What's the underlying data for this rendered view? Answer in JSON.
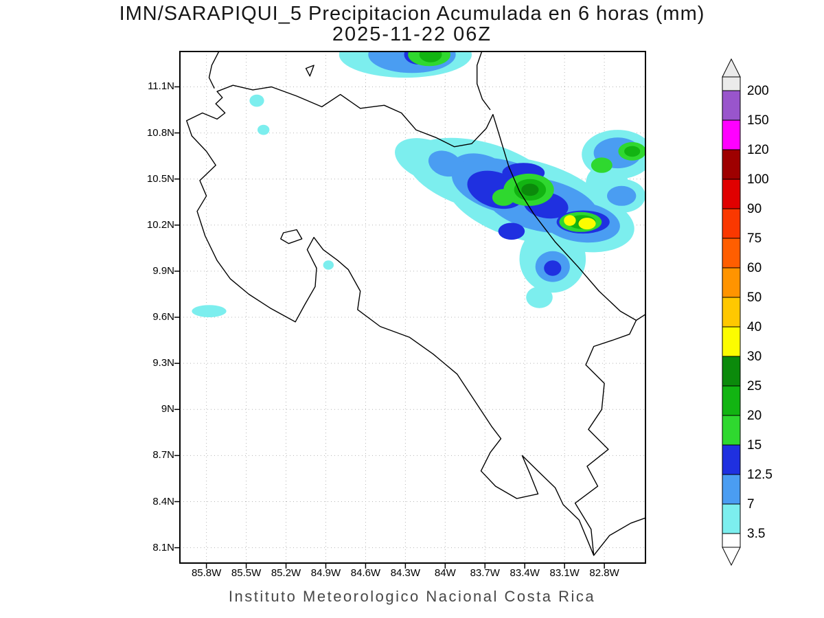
{
  "title": {
    "line1": "IMN/SARAPIQUI_5 Precipitacion Acumulada en 6 horas (mm)",
    "line2": "2025-11-22 06Z"
  },
  "footer": "Instituto Meteorologico Nacional Costa Rica",
  "chart_data": {
    "type": "heatmap",
    "subtype": "filled_contour_precipitation_map",
    "title": "IMN/SARAPIQUI_5 Precipitacion Acumulada en 6 horas (mm)",
    "valid_time": "2025-11-22 06Z",
    "region": "Costa Rica",
    "units": "mm",
    "legend_position": "right",
    "grid": "dotted",
    "map_window": {
      "lon_min": -86.0,
      "lon_max": -82.49,
      "lat_min": 8.0,
      "lat_max": 11.33
    },
    "x_tick_labels": [
      "85.8W",
      "85.5W",
      "85.2W",
      "84.9W",
      "84.6W",
      "84.3W",
      "84W",
      "83.7W",
      "83.4W",
      "83.1W",
      "82.8W"
    ],
    "y_tick_labels": [
      "11.1N",
      "10.8N",
      "10.5N",
      "10.2N",
      "9.9N",
      "9.6N",
      "9.3N",
      "9N",
      "8.7N",
      "8.4N",
      "8.1N"
    ],
    "levels": [
      3.5,
      7,
      12.5,
      15,
      20,
      25,
      30,
      40,
      50,
      60,
      75,
      90,
      100,
      120,
      150,
      200
    ],
    "band_colors": [
      "#ffffff",
      "#7ceeee",
      "#4a9df2",
      "#1f30e0",
      "#2fd82f",
      "#12b412",
      "#0b8a0b",
      "#fcfc00",
      "#ffc800",
      "#ff9400",
      "#ff5e00",
      "#fa3800",
      "#e00000",
      "#9e0000",
      "#ff00ff",
      "#9955cc",
      "#ebebeb"
    ],
    "max_observed_band_mm": "30-40",
    "max_location_note": "yellow cores near 10.2N 83.0W on the Caribbean slope",
    "precip_cells": [
      {
        "level": 3.5,
        "lon": -84.3,
        "lat": 11.31,
        "rx": 0.5,
        "ry": 0.15
      },
      {
        "level": 3.5,
        "lon": -84.12,
        "lat": 10.62,
        "rx": 0.27,
        "ry": 0.13,
        "rot": 20
      },
      {
        "level": 3.5,
        "lon": -83.73,
        "lat": 10.52,
        "rx": 0.57,
        "ry": 0.22,
        "rot": 15
      },
      {
        "level": 3.5,
        "lon": -83.37,
        "lat": 10.36,
        "rx": 0.64,
        "ry": 0.26,
        "rot": 15
      },
      {
        "level": 3.5,
        "lon": -82.98,
        "lat": 10.22,
        "rx": 0.41,
        "ry": 0.19,
        "rot": 10
      },
      {
        "level": 3.5,
        "lon": -83.19,
        "lat": 9.98,
        "rx": 0.25,
        "ry": 0.22
      },
      {
        "level": 3.5,
        "lon": -82.7,
        "lat": 10.66,
        "rx": 0.27,
        "ry": 0.16
      },
      {
        "level": 3.5,
        "lon": -82.78,
        "lat": 10.47,
        "rx": 0.16,
        "ry": 0.13
      },
      {
        "level": 3.5,
        "lon": -82.67,
        "lat": 10.39,
        "rx": 0.18,
        "ry": 0.11
      },
      {
        "level": 3.5,
        "lon": -85.42,
        "lat": 11.01,
        "rx": 0.055,
        "ry": 0.04
      },
      {
        "level": 3.5,
        "lon": -85.37,
        "lat": 10.82,
        "rx": 0.045,
        "ry": 0.033
      },
      {
        "level": 3.5,
        "lon": -85.78,
        "lat": 9.64,
        "rx": 0.13,
        "ry": 0.04
      },
      {
        "level": 3.5,
        "lon": -84.88,
        "lat": 9.94,
        "rx": 0.04,
        "ry": 0.03
      },
      {
        "level": 3.5,
        "lon": -83.29,
        "lat": 9.73,
        "rx": 0.1,
        "ry": 0.07
      },
      {
        "level": 7,
        "lon": -84.25,
        "lat": 11.31,
        "rx": 0.33,
        "ry": 0.12
      },
      {
        "level": 7,
        "lon": -84.0,
        "lat": 10.6,
        "rx": 0.13,
        "ry": 0.08,
        "rot": 20
      },
      {
        "level": 7,
        "lon": -83.73,
        "lat": 10.54,
        "rx": 0.23,
        "ry": 0.12,
        "rot": 15
      },
      {
        "level": 7,
        "lon": -83.55,
        "lat": 10.45,
        "rx": 0.41,
        "ry": 0.17,
        "rot": 15
      },
      {
        "level": 7,
        "lon": -83.27,
        "lat": 10.33,
        "rx": 0.43,
        "ry": 0.17,
        "rot": 12
      },
      {
        "level": 7,
        "lon": -82.98,
        "lat": 10.22,
        "rx": 0.3,
        "ry": 0.13,
        "rot": 8
      },
      {
        "level": 7,
        "lon": -83.19,
        "lat": 9.93,
        "rx": 0.13,
        "ry": 0.1
      },
      {
        "level": 7,
        "lon": -82.7,
        "lat": 10.67,
        "rx": 0.18,
        "ry": 0.1
      },
      {
        "level": 7,
        "lon": -82.67,
        "lat": 10.39,
        "rx": 0.11,
        "ry": 0.065
      },
      {
        "level": 12.5,
        "lon": -84.2,
        "lat": 11.31,
        "rx": 0.11,
        "ry": 0.065
      },
      {
        "level": 12.5,
        "lon": -83.62,
        "lat": 10.43,
        "rx": 0.22,
        "ry": 0.115,
        "rot": 18
      },
      {
        "level": 12.5,
        "lon": -83.41,
        "lat": 10.54,
        "rx": 0.16,
        "ry": 0.065
      },
      {
        "level": 12.5,
        "lon": -83.24,
        "lat": 10.33,
        "rx": 0.17,
        "ry": 0.085,
        "rot": 10
      },
      {
        "level": 12.5,
        "lon": -83.5,
        "lat": 10.16,
        "rx": 0.1,
        "ry": 0.055
      },
      {
        "level": 12.5,
        "lon": -82.96,
        "lat": 10.22,
        "rx": 0.2,
        "ry": 0.075
      },
      {
        "level": 12.5,
        "lon": -83.19,
        "lat": 9.92,
        "rx": 0.065,
        "ry": 0.05
      },
      {
        "level": 15,
        "lon": -84.12,
        "lat": 11.31,
        "rx": 0.16,
        "ry": 0.075
      },
      {
        "level": 15,
        "lon": -83.37,
        "lat": 10.43,
        "rx": 0.19,
        "ry": 0.105
      },
      {
        "level": 15,
        "lon": -83.56,
        "lat": 10.38,
        "rx": 0.085,
        "ry": 0.055
      },
      {
        "level": 15,
        "lon": -82.98,
        "lat": 10.22,
        "rx": 0.16,
        "ry": 0.065
      },
      {
        "level": 15,
        "lon": -82.59,
        "lat": 10.68,
        "rx": 0.105,
        "ry": 0.06
      },
      {
        "level": 15,
        "lon": -82.82,
        "lat": 10.59,
        "rx": 0.08,
        "ry": 0.05
      },
      {
        "level": 20,
        "lon": -84.11,
        "lat": 11.31,
        "rx": 0.085,
        "ry": 0.05
      },
      {
        "level": 20,
        "lon": -83.36,
        "lat": 10.43,
        "rx": 0.12,
        "ry": 0.07
      },
      {
        "level": 20,
        "lon": -82.97,
        "lat": 10.22,
        "rx": 0.105,
        "ry": 0.045
      },
      {
        "level": 20,
        "lon": -82.59,
        "lat": 10.68,
        "rx": 0.06,
        "ry": 0.035
      },
      {
        "level": 25,
        "lon": -83.36,
        "lat": 10.43,
        "rx": 0.065,
        "ry": 0.04
      },
      {
        "level": 25,
        "lon": -82.94,
        "lat": 10.215,
        "rx": 0.06,
        "ry": 0.03
      },
      {
        "level": 30,
        "lon": -83.06,
        "lat": 10.23,
        "rx": 0.045,
        "ry": 0.035
      },
      {
        "level": 30,
        "lon": -82.93,
        "lat": 10.21,
        "rx": 0.065,
        "ry": 0.038
      }
    ],
    "geometry": {
      "closed": {
        "costa-rica-coastline": [
          [
            -85.95,
            10.88
          ],
          [
            -85.83,
            10.93
          ],
          [
            -85.72,
            10.89
          ],
          [
            -85.66,
            10.93
          ],
          [
            -85.73,
            10.99
          ],
          [
            -85.68,
            11.03
          ],
          [
            -85.72,
            11.07
          ],
          [
            -85.6,
            11.11
          ],
          [
            -85.45,
            11.08
          ],
          [
            -85.31,
            11.1
          ],
          [
            -85.12,
            11.04
          ],
          [
            -84.93,
            10.97
          ],
          [
            -84.79,
            11.05
          ],
          [
            -84.64,
            10.96
          ],
          [
            -84.46,
            10.98
          ],
          [
            -84.33,
            10.93
          ],
          [
            -84.22,
            10.82
          ],
          [
            -84.07,
            10.77
          ],
          [
            -83.93,
            10.71
          ],
          [
            -83.8,
            10.73
          ],
          [
            -83.69,
            10.83
          ],
          [
            -83.64,
            10.92
          ],
          [
            -83.59,
            10.78
          ],
          [
            -83.52,
            10.58
          ],
          [
            -83.44,
            10.42
          ],
          [
            -83.33,
            10.27
          ],
          [
            -83.17,
            10.09
          ],
          [
            -83.0,
            9.93
          ],
          [
            -82.84,
            9.77
          ],
          [
            -82.68,
            9.64
          ],
          [
            -82.56,
            9.58
          ],
          [
            -82.61,
            9.49
          ],
          [
            -82.74,
            9.45
          ],
          [
            -82.88,
            9.41
          ],
          [
            -82.94,
            9.29
          ],
          [
            -82.8,
            9.17
          ],
          [
            -82.82,
            9.0
          ],
          [
            -82.92,
            8.87
          ],
          [
            -82.77,
            8.74
          ],
          [
            -82.93,
            8.63
          ],
          [
            -82.85,
            8.5
          ],
          [
            -83.02,
            8.39
          ],
          [
            -82.9,
            8.22
          ],
          [
            -82.88,
            8.05
          ],
          [
            -82.99,
            8.28
          ],
          [
            -83.11,
            8.38
          ],
          [
            -83.17,
            8.49
          ],
          [
            -83.29,
            8.59
          ],
          [
            -83.42,
            8.7
          ],
          [
            -83.36,
            8.58
          ],
          [
            -83.3,
            8.45
          ],
          [
            -83.46,
            8.42
          ],
          [
            -83.62,
            8.5
          ],
          [
            -83.73,
            8.6
          ],
          [
            -83.66,
            8.72
          ],
          [
            -83.58,
            8.81
          ],
          [
            -83.65,
            8.89
          ],
          [
            -83.78,
            9.06
          ],
          [
            -83.91,
            9.23
          ],
          [
            -84.09,
            9.36
          ],
          [
            -84.27,
            9.47
          ],
          [
            -84.49,
            9.54
          ],
          [
            -84.66,
            9.65
          ],
          [
            -84.64,
            9.77
          ],
          [
            -84.73,
            9.91
          ],
          [
            -84.81,
            9.97
          ],
          [
            -84.92,
            10.04
          ],
          [
            -84.99,
            10.12
          ],
          [
            -85.04,
            10.04
          ],
          [
            -84.97,
            9.92
          ],
          [
            -84.98,
            9.8
          ],
          [
            -85.06,
            9.68
          ],
          [
            -85.13,
            9.57
          ],
          [
            -85.32,
            9.66
          ],
          [
            -85.48,
            9.75
          ],
          [
            -85.62,
            9.85
          ],
          [
            -85.72,
            9.97
          ],
          [
            -85.81,
            10.13
          ],
          [
            -85.87,
            10.29
          ],
          [
            -85.8,
            10.39
          ],
          [
            -85.85,
            10.49
          ],
          [
            -85.73,
            10.59
          ],
          [
            -85.8,
            10.68
          ],
          [
            -85.91,
            10.78
          ]
        ],
        "isla-chira": [
          [
            -85.22,
            10.15
          ],
          [
            -85.12,
            10.17
          ],
          [
            -85.08,
            10.11
          ],
          [
            -85.18,
            10.08
          ],
          [
            -85.24,
            10.11
          ]
        ],
        "isla-solentiname": [
          [
            -85.05,
            11.22
          ],
          [
            -84.99,
            11.24
          ],
          [
            -85.02,
            11.17
          ]
        ]
      },
      "open": {
        "nicaragua-pacific-coast": [
          [
            -85.74,
            11.09
          ],
          [
            -85.78,
            11.16
          ],
          [
            -85.76,
            11.24
          ],
          [
            -85.7,
            11.34
          ]
        ],
        "nicaragua-caribbean-coast": [
          [
            -83.66,
            10.95
          ],
          [
            -83.72,
            11.02
          ],
          [
            -83.76,
            11.12
          ],
          [
            -83.76,
            11.24
          ],
          [
            -83.72,
            11.34
          ]
        ],
        "panama-caribbean-coast": [
          [
            -82.56,
            9.58
          ],
          [
            -82.47,
            9.63
          ]
        ],
        "panama-pacific-coast": [
          [
            -82.88,
            8.05
          ],
          [
            -82.76,
            8.18
          ],
          [
            -82.6,
            8.26
          ],
          [
            -82.47,
            8.3
          ]
        ]
      }
    }
  }
}
